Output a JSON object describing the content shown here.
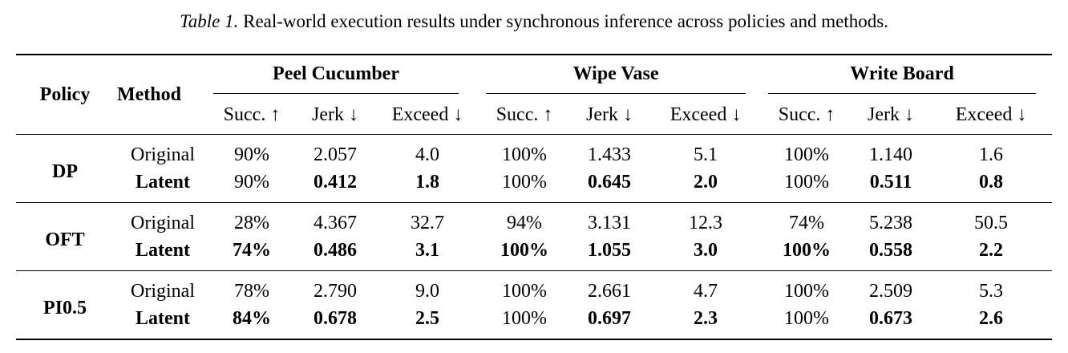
{
  "caption": {
    "label": "Table 1.",
    "text": "Real-world execution results under synchronous inference across policies and methods."
  },
  "header": {
    "policy": "Policy",
    "method": "Method",
    "tasks": [
      "Peel Cucumber",
      "Wipe Vase",
      "Write Board"
    ],
    "metrics": [
      "Succ. ↑",
      "Jerk ↓",
      "Exceed ↓"
    ]
  },
  "rows": [
    {
      "policy": "DP",
      "entries": [
        {
          "method": "Original",
          "values": [
            "90%",
            "2.057",
            "4.0",
            "100%",
            "1.433",
            "5.1",
            "100%",
            "1.140",
            "1.6"
          ]
        },
        {
          "method": "Latent",
          "values": [
            "90%",
            "0.412",
            "1.8",
            "100%",
            "0.645",
            "2.0",
            "100%",
            "0.511",
            "0.8"
          ]
        }
      ]
    },
    {
      "policy": "OFT",
      "entries": [
        {
          "method": "Original",
          "values": [
            "28%",
            "4.367",
            "32.7",
            "94%",
            "3.131",
            "12.3",
            "74%",
            "5.238",
            "50.5"
          ]
        },
        {
          "method": "Latent",
          "values": [
            "74%",
            "0.486",
            "3.1",
            "100%",
            "1.055",
            "3.0",
            "100%",
            "0.558",
            "2.2"
          ]
        }
      ]
    },
    {
      "policy": "PI0.5",
      "entries": [
        {
          "method": "Original",
          "values": [
            "78%",
            "2.790",
            "9.0",
            "100%",
            "2.661",
            "4.7",
            "100%",
            "2.509",
            "5.3"
          ]
        },
        {
          "method": "Latent",
          "values": [
            "84%",
            "0.678",
            "2.5",
            "100%",
            "0.697",
            "2.3",
            "100%",
            "0.673",
            "2.6"
          ]
        }
      ]
    }
  ]
}
